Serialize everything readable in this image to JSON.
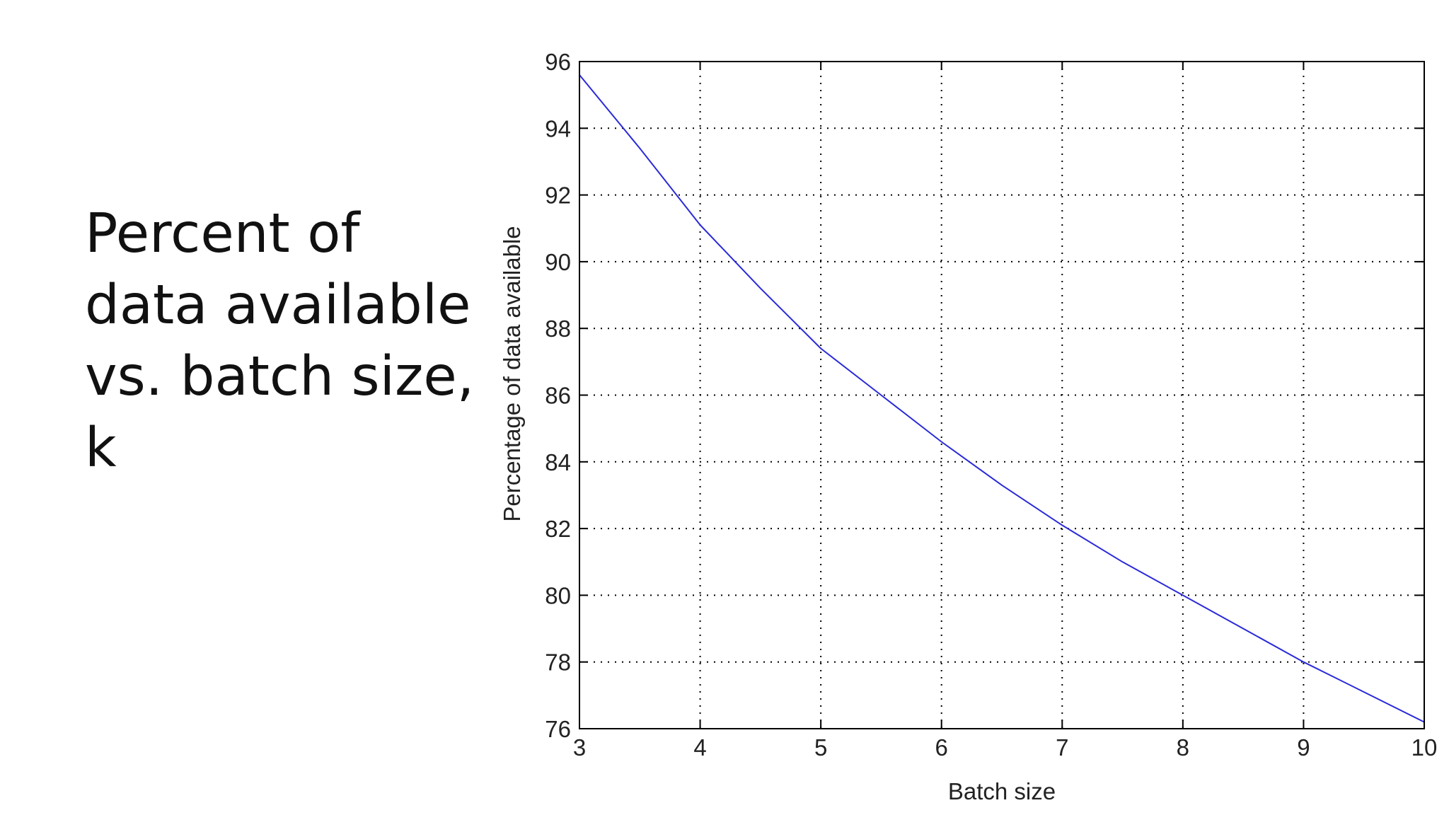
{
  "slide": {
    "title": "Percent of\ndata available\nvs. batch size,\nk"
  },
  "chart_data": {
    "type": "line",
    "title": "",
    "xlabel": "Batch size",
    "ylabel": "Percentage of data available",
    "xlim": [
      3,
      10
    ],
    "ylim": [
      76,
      96
    ],
    "xticks": [
      3,
      4,
      5,
      6,
      7,
      8,
      9,
      10
    ],
    "yticks": [
      76,
      78,
      80,
      82,
      84,
      86,
      88,
      90,
      92,
      94,
      96
    ],
    "grid": true,
    "grid_style": "dotted",
    "legend": "none",
    "series": [
      {
        "color": "#2a2ad8",
        "x": [
          3,
          3.5,
          4,
          4.5,
          5,
          5.5,
          6,
          6.5,
          7,
          7.5,
          8,
          8.5,
          9,
          9.5,
          10
        ],
        "y": [
          95.6,
          93.4,
          91.1,
          89.2,
          87.4,
          86.0,
          84.6,
          83.3,
          82.1,
          81.0,
          80.0,
          79.0,
          78.0,
          77.1,
          76.2
        ]
      }
    ]
  }
}
